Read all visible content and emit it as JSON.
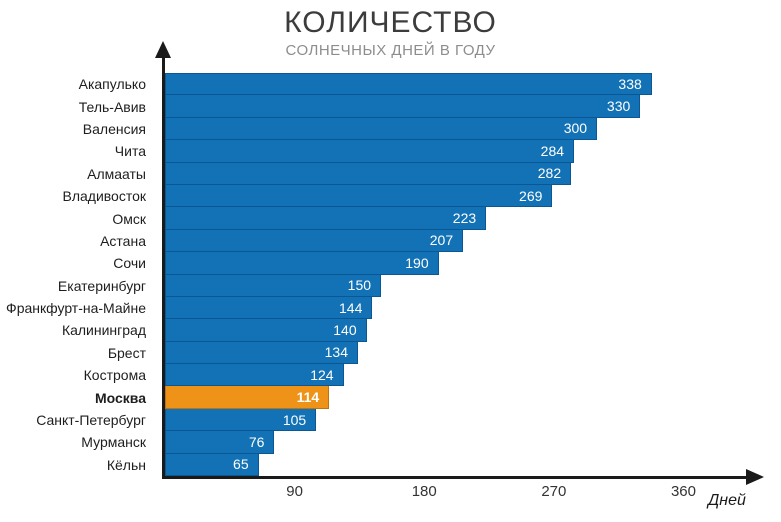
{
  "chart_data": {
    "type": "bar",
    "orientation": "horizontal",
    "title": "КОЛИЧЕСТВО",
    "subtitle": "СОЛНЕЧНЫХ ДНЕЙ В ГОДУ",
    "xlabel": "Дней",
    "categories": [
      "Акапулько",
      "Тель-Авив",
      "Валенсия",
      "Чита",
      "Алмааты",
      "Владивосток",
      "Омск",
      "Астана",
      "Сочи",
      "Екатеринбург",
      "Франкфурт-на-Майне",
      "Калининград",
      "Брест",
      "Кострома",
      "Москва",
      "Санкт-Петербург",
      "Мурманск",
      "Кёльн"
    ],
    "values": [
      338,
      330,
      300,
      284,
      282,
      269,
      223,
      207,
      190,
      150,
      144,
      140,
      134,
      124,
      114,
      105,
      76,
      65
    ],
    "highlight_index": 14,
    "highlight_category": "Москва",
    "xticks": [
      90,
      180,
      270,
      360
    ],
    "xlim": [
      0,
      393
    ],
    "grid": false,
    "colors": {
      "bar": "#1272b5",
      "bar_border": "#0a5794",
      "highlight": "#ef9318",
      "highlight_border": "#bc7410",
      "value_text": "#ffffff",
      "axis": "#1a1a1a",
      "title_text": "#3c3c3c",
      "subtitle_text": "#8d8d8d",
      "tick_text": "#333333",
      "category_text": "#1e1e1e"
    }
  }
}
